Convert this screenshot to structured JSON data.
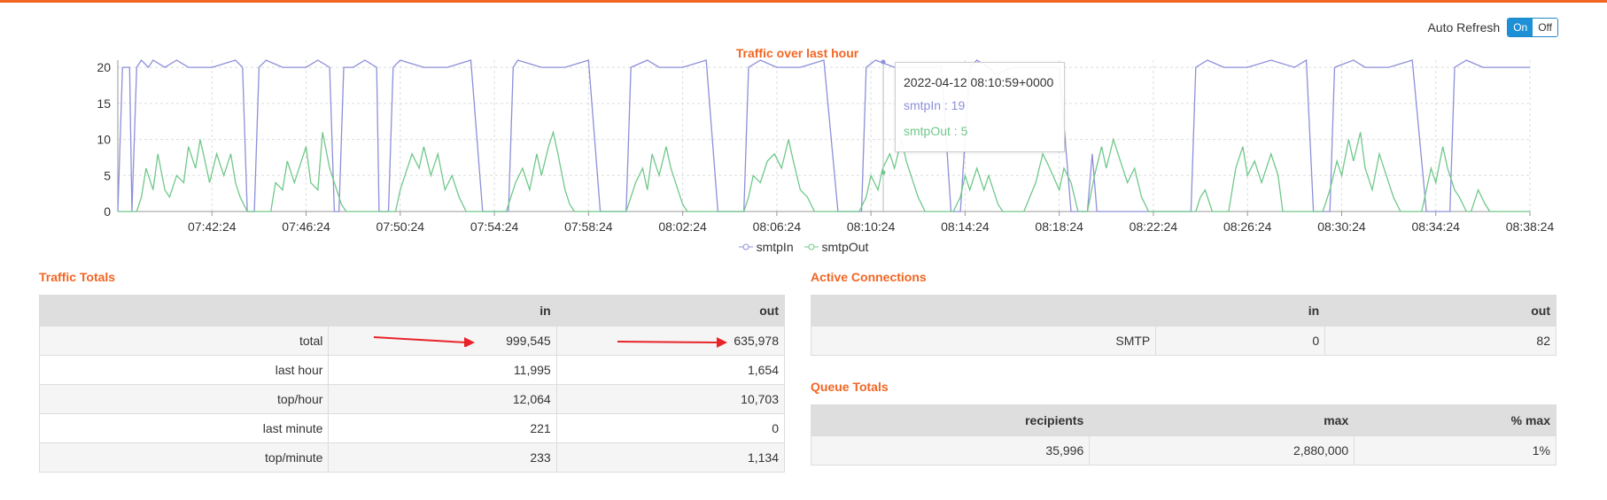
{
  "auto_refresh": {
    "label": "Auto Refresh",
    "on": "On",
    "off": "Off"
  },
  "colors": {
    "accent": "#f26522",
    "smtpIn": "#8d8fd9",
    "smtpOut": "#6fc88a",
    "toggle": "#1e90d6",
    "arrow": "#e8232a"
  },
  "chart_data": {
    "type": "line",
    "title": "Traffic over last hour",
    "x_ticks": [
      "07:42:24",
      "07:46:24",
      "07:50:24",
      "07:54:24",
      "07:58:24",
      "08:02:24",
      "08:06:24",
      "08:10:24",
      "08:14:24",
      "08:18:24",
      "08:22:24",
      "08:26:24",
      "08:30:24",
      "08:34:24",
      "08:38:24"
    ],
    "y_ticks": [
      0,
      5,
      10,
      15,
      20
    ],
    "ylim": [
      0,
      21
    ],
    "xlim_minutes": [
      0,
      60
    ],
    "grid": true,
    "legend": "bottom",
    "series": [
      {
        "name": "smtpIn",
        "color": "#8d8fd9",
        "points": [
          [
            0,
            0
          ],
          [
            0.2,
            20
          ],
          [
            0.5,
            20
          ],
          [
            0.6,
            0
          ],
          [
            0.8,
            20
          ],
          [
            1.0,
            21
          ],
          [
            1.3,
            20
          ],
          [
            1.5,
            21
          ],
          [
            2.0,
            20
          ],
          [
            2.5,
            21
          ],
          [
            3.0,
            20
          ],
          [
            4.0,
            20
          ],
          [
            5.0,
            21
          ],
          [
            5.3,
            20
          ],
          [
            5.5,
            0
          ],
          [
            5.8,
            0
          ],
          [
            6.0,
            20
          ],
          [
            6.3,
            21
          ],
          [
            7.0,
            20
          ],
          [
            8.0,
            20
          ],
          [
            8.5,
            21
          ],
          [
            9.0,
            20
          ],
          [
            9.2,
            0
          ],
          [
            9.4,
            0
          ],
          [
            9.6,
            20
          ],
          [
            10.0,
            20
          ],
          [
            10.5,
            21
          ],
          [
            11.0,
            20
          ],
          [
            11.1,
            0
          ],
          [
            11.5,
            0
          ],
          [
            11.7,
            20
          ],
          [
            12.0,
            21
          ],
          [
            13.0,
            20
          ],
          [
            14.0,
            20
          ],
          [
            15.0,
            21
          ],
          [
            15.5,
            0
          ],
          [
            16.0,
            0
          ],
          [
            16.6,
            0
          ],
          [
            16.8,
            20
          ],
          [
            17.0,
            21
          ],
          [
            18.0,
            20
          ],
          [
            19.0,
            20
          ],
          [
            20.0,
            21
          ],
          [
            20.5,
            0
          ],
          [
            21.0,
            0
          ],
          [
            21.6,
            0
          ],
          [
            21.8,
            20
          ],
          [
            22.5,
            21
          ],
          [
            23.0,
            20
          ],
          [
            24.0,
            20
          ],
          [
            25.0,
            21
          ],
          [
            25.5,
            0
          ],
          [
            26.0,
            0
          ],
          [
            26.6,
            0
          ],
          [
            26.8,
            20
          ],
          [
            27.3,
            21
          ],
          [
            28.0,
            20
          ],
          [
            29.0,
            20
          ],
          [
            30.0,
            21
          ],
          [
            30.6,
            0
          ],
          [
            31.0,
            0
          ],
          [
            31.6,
            0
          ],
          [
            31.8,
            20
          ],
          [
            32.2,
            21
          ],
          [
            33.0,
            20
          ],
          [
            34.0,
            20
          ],
          [
            35.0,
            20
          ],
          [
            35.4,
            0
          ],
          [
            35.8,
            0
          ],
          [
            36.2,
            20
          ],
          [
            36.5,
            21
          ],
          [
            37.0,
            20
          ],
          [
            37.3,
            19
          ],
          [
            38.0,
            20
          ],
          [
            40.0,
            20
          ],
          [
            40.5,
            0
          ],
          [
            41.2,
            0
          ],
          [
            41.4,
            8
          ],
          [
            41.6,
            0
          ],
          [
            42.0,
            0
          ],
          [
            43.0,
            0
          ],
          [
            44.0,
            0
          ],
          [
            45.0,
            0
          ],
          [
            45.6,
            0
          ],
          [
            45.8,
            20
          ],
          [
            46.3,
            21
          ],
          [
            47.0,
            20
          ],
          [
            48.0,
            20
          ],
          [
            49.0,
            21
          ],
          [
            50.0,
            20
          ],
          [
            50.5,
            21
          ],
          [
            50.8,
            0
          ],
          [
            51.5,
            0
          ],
          [
            51.7,
            20
          ],
          [
            52.5,
            21
          ],
          [
            53.0,
            20
          ],
          [
            54.0,
            20
          ],
          [
            55.0,
            21
          ],
          [
            55.6,
            0
          ],
          [
            56.0,
            0
          ],
          [
            56.6,
            0
          ],
          [
            56.8,
            20
          ],
          [
            57.3,
            21
          ],
          [
            58.0,
            20
          ],
          [
            59.0,
            20
          ],
          [
            60.0,
            20
          ]
        ]
      },
      {
        "name": "smtpOut",
        "color": "#6fc88a",
        "points": [
          [
            0,
            0
          ],
          [
            0.5,
            0
          ],
          [
            0.8,
            0
          ],
          [
            1.0,
            2
          ],
          [
            1.2,
            6
          ],
          [
            1.5,
            3
          ],
          [
            1.7,
            8
          ],
          [
            2.0,
            3
          ],
          [
            2.2,
            2
          ],
          [
            2.5,
            5
          ],
          [
            2.8,
            4
          ],
          [
            3.0,
            9
          ],
          [
            3.3,
            6
          ],
          [
            3.5,
            10
          ],
          [
            3.7,
            7
          ],
          [
            3.9,
            4
          ],
          [
            4.2,
            8
          ],
          [
            4.5,
            5
          ],
          [
            4.8,
            8
          ],
          [
            5.0,
            4
          ],
          [
            5.2,
            2
          ],
          [
            5.5,
            0
          ],
          [
            6.0,
            0
          ],
          [
            6.5,
            0
          ],
          [
            6.7,
            4
          ],
          [
            7.0,
            3
          ],
          [
            7.2,
            7
          ],
          [
            7.5,
            4
          ],
          [
            7.7,
            6
          ],
          [
            8.0,
            9
          ],
          [
            8.2,
            4
          ],
          [
            8.5,
            3
          ],
          [
            8.7,
            11
          ],
          [
            9.0,
            6
          ],
          [
            9.3,
            3
          ],
          [
            9.5,
            1
          ],
          [
            9.7,
            0
          ],
          [
            10.0,
            0
          ],
          [
            10.6,
            0
          ],
          [
            11.0,
            0
          ],
          [
            11.5,
            0
          ],
          [
            11.8,
            0
          ],
          [
            12.0,
            3
          ],
          [
            12.2,
            5
          ],
          [
            12.5,
            8
          ],
          [
            12.8,
            6
          ],
          [
            13.0,
            9
          ],
          [
            13.3,
            5
          ],
          [
            13.6,
            8
          ],
          [
            13.9,
            3
          ],
          [
            14.2,
            5
          ],
          [
            14.5,
            2
          ],
          [
            14.8,
            0
          ],
          [
            15.0,
            0
          ],
          [
            16.0,
            0
          ],
          [
            16.5,
            0
          ],
          [
            16.7,
            2
          ],
          [
            16.9,
            4
          ],
          [
            17.2,
            6
          ],
          [
            17.5,
            3
          ],
          [
            17.8,
            8
          ],
          [
            18.0,
            5
          ],
          [
            18.3,
            9
          ],
          [
            18.5,
            11
          ],
          [
            18.7,
            8
          ],
          [
            19.0,
            3
          ],
          [
            19.2,
            1
          ],
          [
            19.4,
            0
          ],
          [
            20.0,
            0
          ],
          [
            21.0,
            0
          ],
          [
            21.6,
            0
          ],
          [
            21.8,
            2
          ],
          [
            22.0,
            4
          ],
          [
            22.3,
            6
          ],
          [
            22.5,
            3
          ],
          [
            22.7,
            8
          ],
          [
            23.0,
            5
          ],
          [
            23.3,
            9
          ],
          [
            23.5,
            6
          ],
          [
            23.8,
            3
          ],
          [
            24.0,
            1
          ],
          [
            24.2,
            0
          ],
          [
            25.0,
            0
          ],
          [
            26.0,
            0
          ],
          [
            26.6,
            0
          ],
          [
            26.8,
            2
          ],
          [
            27.0,
            5
          ],
          [
            27.3,
            4
          ],
          [
            27.6,
            7
          ],
          [
            27.9,
            8
          ],
          [
            28.2,
            6
          ],
          [
            28.5,
            10
          ],
          [
            28.7,
            7
          ],
          [
            29.0,
            3
          ],
          [
            29.3,
            2
          ],
          [
            29.6,
            0
          ],
          [
            30.0,
            0
          ],
          [
            31.0,
            0
          ],
          [
            31.5,
            0
          ],
          [
            31.8,
            2
          ],
          [
            32.0,
            5
          ],
          [
            32.3,
            3
          ],
          [
            32.5,
            6
          ],
          [
            32.8,
            8
          ],
          [
            33.0,
            6
          ],
          [
            33.3,
            10
          ],
          [
            33.5,
            7
          ],
          [
            33.8,
            4
          ],
          [
            34.0,
            2
          ],
          [
            34.3,
            0
          ],
          [
            35.0,
            0
          ],
          [
            35.5,
            0
          ],
          [
            35.8,
            2
          ],
          [
            36.0,
            5
          ],
          [
            36.2,
            3
          ],
          [
            36.5,
            6
          ],
          [
            36.8,
            3
          ],
          [
            37.0,
            5
          ],
          [
            37.2,
            3
          ],
          [
            37.4,
            1
          ],
          [
            37.6,
            0
          ],
          [
            38.0,
            0
          ],
          [
            38.5,
            0
          ],
          [
            39.0,
            4
          ],
          [
            39.3,
            8
          ],
          [
            39.6,
            6
          ],
          [
            40.0,
            3
          ],
          [
            40.2,
            6
          ],
          [
            40.5,
            4
          ],
          [
            40.8,
            0
          ],
          [
            41.2,
            0
          ],
          [
            41.5,
            5
          ],
          [
            41.8,
            9
          ],
          [
            42.0,
            6
          ],
          [
            42.3,
            10
          ],
          [
            42.6,
            7
          ],
          [
            42.9,
            4
          ],
          [
            43.2,
            6
          ],
          [
            43.5,
            2
          ],
          [
            43.8,
            0
          ],
          [
            44.5,
            0
          ],
          [
            45.0,
            0
          ],
          [
            45.5,
            0
          ],
          [
            45.8,
            0
          ],
          [
            46.0,
            2
          ],
          [
            46.2,
            3
          ],
          [
            46.5,
            0
          ],
          [
            47.0,
            0
          ],
          [
            47.2,
            0
          ],
          [
            47.5,
            6
          ],
          [
            47.8,
            9
          ],
          [
            48.0,
            5
          ],
          [
            48.3,
            7
          ],
          [
            48.6,
            4
          ],
          [
            49.0,
            8
          ],
          [
            49.3,
            5
          ],
          [
            49.5,
            0
          ],
          [
            50.0,
            0
          ],
          [
            50.5,
            0
          ],
          [
            51.2,
            0
          ],
          [
            51.5,
            3
          ],
          [
            51.8,
            7
          ],
          [
            52.0,
            5
          ],
          [
            52.3,
            10
          ],
          [
            52.5,
            7
          ],
          [
            52.8,
            11
          ],
          [
            53.0,
            6
          ],
          [
            53.3,
            3
          ],
          [
            53.6,
            8
          ],
          [
            53.9,
            5
          ],
          [
            54.2,
            2
          ],
          [
            54.5,
            0
          ],
          [
            55.0,
            0
          ],
          [
            55.4,
            0
          ],
          [
            55.6,
            3
          ],
          [
            55.8,
            6
          ],
          [
            56.0,
            4
          ],
          [
            56.3,
            9
          ],
          [
            56.5,
            6
          ],
          [
            56.8,
            3
          ],
          [
            57.0,
            2
          ],
          [
            57.3,
            0
          ],
          [
            57.5,
            0
          ],
          [
            57.8,
            3
          ],
          [
            58.1,
            1
          ],
          [
            58.3,
            0
          ],
          [
            58.6,
            0
          ],
          [
            59.0,
            0
          ],
          [
            60.0,
            0
          ]
        ]
      }
    ]
  },
  "tooltip": {
    "time": "2022-04-12 08:10:59+0000",
    "smtpIn": "smtpIn : 19",
    "smtpOut": "smtpOut : 5"
  },
  "traffic_totals": {
    "title": "Traffic Totals",
    "headers": [
      "",
      "in",
      "out"
    ],
    "rows": [
      [
        "total",
        "999,545",
        "635,978"
      ],
      [
        "last hour",
        "11,995",
        "1,654"
      ],
      [
        "top/hour",
        "12,064",
        "10,703"
      ],
      [
        "last minute",
        "221",
        "0"
      ],
      [
        "top/minute",
        "233",
        "1,134"
      ]
    ]
  },
  "active_connections": {
    "title": "Active Connections",
    "headers": [
      "",
      "in",
      "out"
    ],
    "rows": [
      [
        "SMTP",
        "0",
        "82"
      ]
    ]
  },
  "queue_totals": {
    "title": "Queue Totals",
    "headers": [
      "recipients",
      "max",
      "% max"
    ],
    "rows": [
      [
        "35,996",
        "2,880,000",
        "1%"
      ]
    ]
  }
}
